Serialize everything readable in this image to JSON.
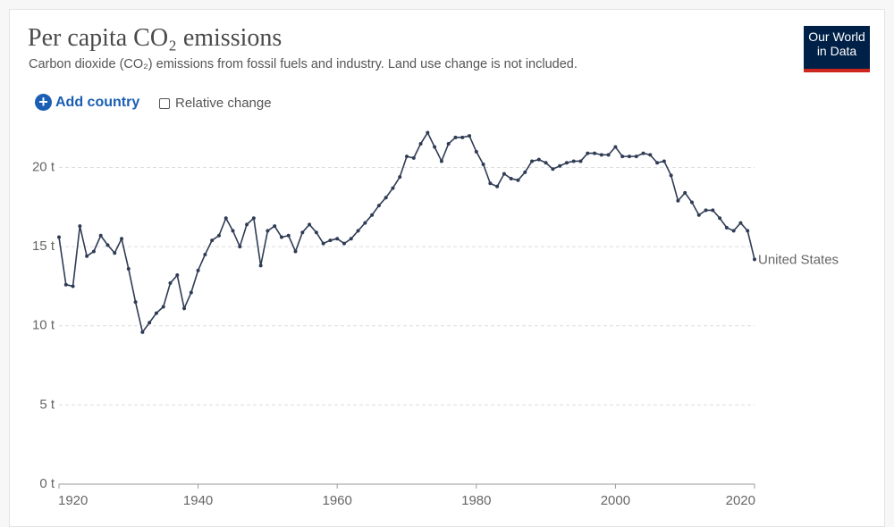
{
  "header": {
    "logo": "Our World in Data",
    "add_country": "Add country",
    "relative_change": "Relative change"
  },
  "chart_data": {
    "type": "line",
    "title": "Per capita CO₂ emissions",
    "subtitle": "Carbon dioxide (CO₂) emissions from fossil fuels and industry. Land use change is not included.",
    "x": [
      1920,
      1921,
      1922,
      1923,
      1924,
      1925,
      1926,
      1927,
      1928,
      1929,
      1930,
      1931,
      1932,
      1933,
      1934,
      1935,
      1936,
      1937,
      1938,
      1939,
      1940,
      1941,
      1942,
      1943,
      1944,
      1945,
      1946,
      1947,
      1948,
      1949,
      1950,
      1951,
      1952,
      1953,
      1954,
      1955,
      1956,
      1957,
      1958,
      1959,
      1960,
      1961,
      1962,
      1963,
      1964,
      1965,
      1966,
      1967,
      1968,
      1969,
      1970,
      1971,
      1972,
      1973,
      1974,
      1975,
      1976,
      1977,
      1978,
      1979,
      1980,
      1981,
      1982,
      1983,
      1984,
      1985,
      1986,
      1987,
      1988,
      1989,
      1990,
      1991,
      1992,
      1993,
      1994,
      1995,
      1996,
      1997,
      1998,
      1999,
      2000,
      2001,
      2002,
      2003,
      2004,
      2005,
      2006,
      2007,
      2008,
      2009,
      2010,
      2011,
      2012,
      2013,
      2014,
      2015,
      2016,
      2017,
      2018,
      2019,
      2020
    ],
    "series": [
      {
        "name": "United States",
        "color": "#2f3c55",
        "values": [
          15.6,
          12.6,
          12.5,
          16.3,
          14.4,
          14.7,
          15.7,
          15.1,
          14.6,
          15.5,
          13.6,
          11.5,
          9.6,
          10.2,
          10.8,
          11.2,
          12.7,
          13.2,
          11.1,
          12.1,
          13.5,
          14.5,
          15.4,
          15.7,
          16.8,
          16.0,
          15.0,
          16.4,
          16.8,
          13.8,
          16.0,
          16.3,
          15.6,
          15.7,
          14.7,
          15.9,
          16.4,
          15.9,
          15.2,
          15.4,
          15.5,
          15.2,
          15.5,
          16.0,
          16.5,
          17.0,
          17.6,
          18.1,
          18.7,
          19.4,
          20.7,
          20.6,
          21.5,
          22.2,
          21.3,
          20.4,
          21.5,
          21.9,
          21.9,
          22.0,
          21.0,
          20.2,
          19.0,
          18.8,
          19.6,
          19.3,
          19.2,
          19.7,
          20.4,
          20.5,
          20.3,
          19.9,
          20.1,
          20.3,
          20.4,
          20.4,
          20.9,
          20.9,
          20.8,
          20.8,
          21.3,
          20.7,
          20.7,
          20.7,
          20.9,
          20.8,
          20.3,
          20.4,
          19.5,
          17.9,
          18.4,
          17.8,
          17.0,
          17.3,
          17.3,
          16.8,
          16.2,
          16.0,
          16.5,
          16.0,
          14.2
        ]
      }
    ],
    "xlim": [
      1920,
      2020
    ],
    "ylim": [
      0,
      22.4
    ],
    "xticks": [
      1920,
      1940,
      1960,
      1980,
      2000,
      2020
    ],
    "yticks": [
      {
        "value": 0,
        "label": "0 t"
      },
      {
        "value": 5,
        "label": "5 t"
      },
      {
        "value": 10,
        "label": "10 t"
      },
      {
        "value": 15,
        "label": "15 t"
      },
      {
        "value": 20,
        "label": "20 t"
      }
    ],
    "grid": true
  }
}
